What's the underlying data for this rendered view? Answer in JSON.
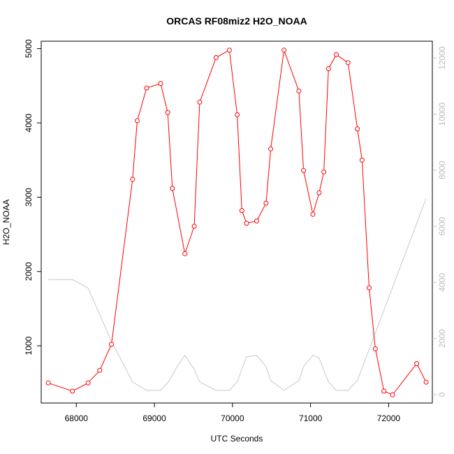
{
  "chart_data": {
    "type": "line",
    "title": "ORCAS RF08miz2 H2O_NOAA",
    "xlabel": "UTC Seconds",
    "ylabel": "H2O_NOAA",
    "xlim": [
      67550,
      72560
    ],
    "ylim": [
      230,
      5100
    ],
    "ylim_right": [
      -300,
      12600
    ],
    "x_ticks": [
      68000,
      69000,
      70000,
      71000,
      72000
    ],
    "y_ticks": [
      1000,
      2000,
      3000,
      4000,
      5000
    ],
    "y_ticks_right": [
      0,
      2000,
      4000,
      6000,
      8000,
      10000,
      12000
    ],
    "grid": false,
    "series": [
      {
        "axis": "left",
        "color": "#ff0000",
        "markers": "open-circle",
        "x": [
          67640,
          67950,
          68150,
          68300,
          68450,
          68720,
          68780,
          68900,
          69080,
          69170,
          69230,
          69390,
          69510,
          69580,
          69790,
          69960,
          70060,
          70120,
          70180,
          70310,
          70430,
          70490,
          70660,
          70850,
          70910,
          71030,
          71110,
          71170,
          71230,
          71330,
          71480,
          71600,
          71660,
          71750,
          71830,
          71940,
          72050,
          72360,
          72480
        ],
        "values": [
          500,
          390,
          500,
          670,
          1020,
          3240,
          4030,
          4470,
          4530,
          4140,
          3120,
          2240,
          2610,
          4280,
          4880,
          4980,
          4110,
          2820,
          2650,
          2680,
          2920,
          3650,
          4980,
          4430,
          3360,
          2770,
          3060,
          3340,
          4730,
          4920,
          4810,
          3920,
          3500,
          1780,
          960,
          390,
          340,
          760,
          510
        ]
      },
      {
        "axis": "right",
        "color": "#c8c8c8",
        "markers": "none",
        "x": [
          67640,
          67950,
          68150,
          68450,
          68720,
          68900,
          69080,
          69180,
          69290,
          69390,
          69510,
          69580,
          69790,
          69960,
          70060,
          70180,
          70310,
          70430,
          70490,
          70660,
          70850,
          70910,
          71030,
          71110,
          71230,
          71330,
          71480,
          71600,
          72480
        ],
        "values": [
          4100,
          4100,
          3800,
          1900,
          450,
          150,
          150,
          450,
          1000,
          1400,
          900,
          450,
          150,
          150,
          450,
          1350,
          1400,
          1000,
          500,
          150,
          500,
          1000,
          1400,
          1300,
          450,
          150,
          150,
          500,
          7000
        ]
      }
    ]
  }
}
